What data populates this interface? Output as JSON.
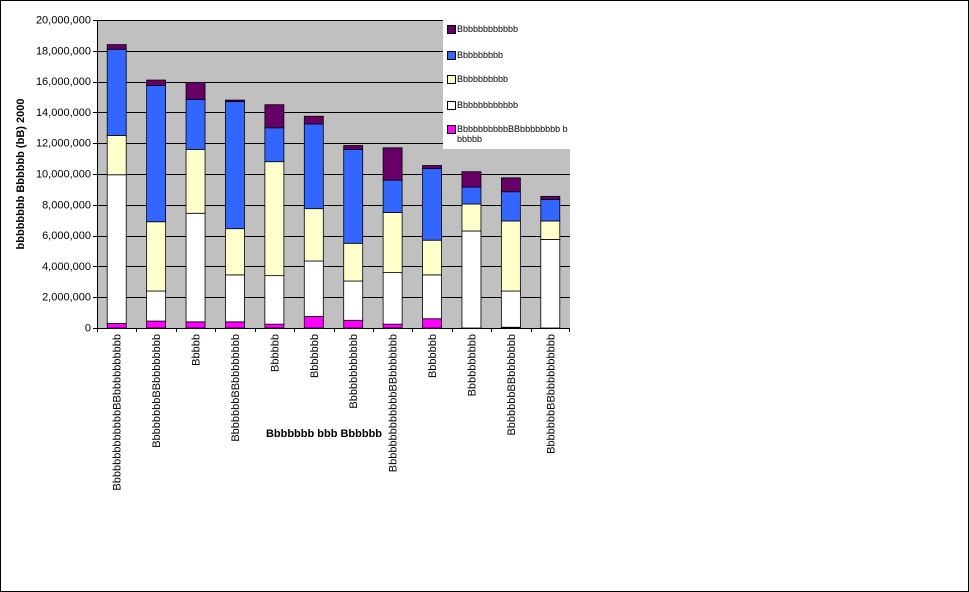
{
  "chart_data": {
    "type": "bar",
    "stacked": true,
    "title": "",
    "xlabel": "Bbbbbbb bbb Bbbbbb",
    "ylabel": "bbbbbbbb Bbbbbb (bB) 2000",
    "ylim": [
      0,
      20000000
    ],
    "yticks": [
      0,
      2000000,
      4000000,
      6000000,
      8000000,
      10000000,
      12000000,
      14000000,
      16000000,
      18000000,
      20000000
    ],
    "ytick_labels": [
      "0",
      "2,000,000",
      "4,000,000",
      "6,000,000",
      "8,000,000",
      "10,000,000",
      "12,000,000",
      "14,000,000",
      "16,000,000",
      "18,000,000",
      "20,000,000"
    ],
    "grid": true,
    "plot_background": "#c0c0c0",
    "legend_position": "top-right",
    "categories": [
      "BbbbbbbbbbbbbBBbbbbbbbbbb",
      "BbbbbbbbBBbbbbbbbb",
      "Bbbbb",
      "BbbbbbbBBbbbbbbbb",
      "Bbbbbb",
      "Bbbbbbb",
      "Bbbbbbbbbbbb",
      "BbbbbbbbbbbbbBBbbbbbbb",
      "Bbbbbbb",
      "Bbbbbbbbbb",
      "BbbbbbbBBbbbbbbb",
      "BbbbbbbBBbbbbbbbbbb"
    ],
    "series": [
      {
        "name": "BbbbbbbbbbBBbbbbbbbb bbbbbb",
        "color": "#ff00ff",
        "values": [
          300000,
          450000,
          400000,
          400000,
          250000,
          750000,
          500000,
          250000,
          600000,
          0,
          50000,
          0
        ]
      },
      {
        "name": "Bbbbbbbbbbbb",
        "color": "#ffffff",
        "values": [
          9650000,
          1950000,
          7050000,
          3050000,
          3150000,
          3600000,
          2550000,
          3350000,
          2850000,
          6300000,
          2350000,
          5750000
        ]
      },
      {
        "name": "Bbbbbbbbbb",
        "color": "#ffffcc",
        "values": [
          2550000,
          4500000,
          4150000,
          3000000,
          7400000,
          3400000,
          2450000,
          3900000,
          2250000,
          1750000,
          4550000,
          1200000
        ]
      },
      {
        "name": "Bbbbbbbbb",
        "color": "#3366ff",
        "values": [
          5600000,
          8850000,
          3250000,
          8250000,
          2200000,
          5500000,
          6100000,
          2100000,
          4650000,
          1100000,
          1900000,
          1400000
        ]
      },
      {
        "name": "Bbbbbbbbbbbb",
        "color": "#660066",
        "values": [
          300000,
          350000,
          1100000,
          100000,
          1500000,
          500000,
          250000,
          2100000,
          200000,
          1000000,
          900000,
          200000
        ]
      }
    ]
  }
}
